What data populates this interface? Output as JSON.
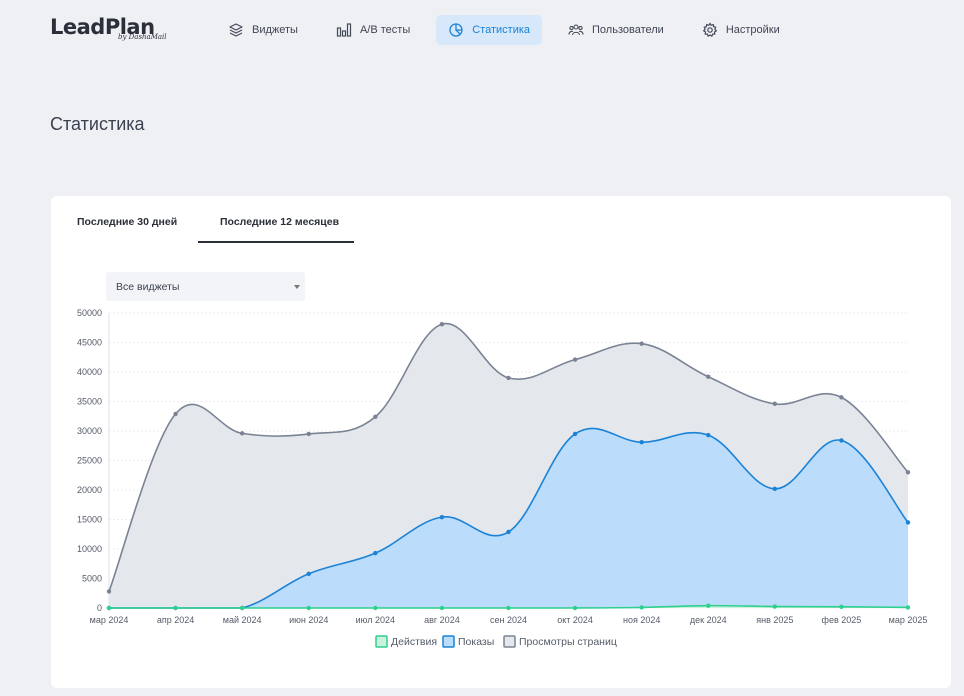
{
  "logo": {
    "main": "LeadPlan",
    "sub": "by DashaMail"
  },
  "nav": [
    {
      "label": "Виджеты",
      "icon": "layers-icon",
      "active": false
    },
    {
      "label": "A/B тесты",
      "icon": "bar-chart-icon",
      "active": false
    },
    {
      "label": "Статистика",
      "icon": "pie-chart-icon",
      "active": true
    },
    {
      "label": "Пользователи",
      "icon": "users-icon",
      "active": false
    },
    {
      "label": "Настройки",
      "icon": "gear-icon",
      "active": false
    }
  ],
  "page_title": "Статистика",
  "tabs": [
    {
      "label": "Последние 30 дней",
      "active": false
    },
    {
      "label": "Последние 12 месяцев",
      "active": true
    }
  ],
  "widget_select": {
    "value": "Все виджеты"
  },
  "colors": {
    "accent": "#1b83d6",
    "nav_active_bg": "#d6e8fa",
    "page_bg": "#eef0f4"
  },
  "chart_data": {
    "type": "area",
    "categories": [
      "мар 2024",
      "апр 2024",
      "май 2024",
      "июн 2024",
      "июл 2024",
      "авг 2024",
      "сен 2024",
      "окт 2024",
      "ноя 2024",
      "дек 2024",
      "янв 2025",
      "фев 2025",
      "мар 2025"
    ],
    "ylim": [
      0,
      50000
    ],
    "yticks": [
      0,
      5000,
      10000,
      15000,
      20000,
      25000,
      30000,
      35000,
      40000,
      45000,
      50000
    ],
    "grid": true,
    "legend_position": "bottom",
    "series": [
      {
        "name": "Действия",
        "color": "#2fcf8e",
        "fill": "#c9f2df",
        "values": [
          0,
          0,
          0,
          0,
          0,
          0,
          0,
          0,
          100,
          400,
          250,
          200,
          100
        ]
      },
      {
        "name": "Показы",
        "color": "#1b83d6",
        "fill": "#bcdcfb",
        "values": [
          0,
          0,
          0,
          5800,
          9300,
          15400,
          12900,
          29500,
          28100,
          29300,
          20200,
          28400,
          14500
        ]
      },
      {
        "name": "Просмотры страниц",
        "color": "#7a8394",
        "fill": "#e4e7ec",
        "values": [
          2800,
          32900,
          29600,
          29500,
          32400,
          48100,
          39000,
          42100,
          44800,
          39200,
          34600,
          35700,
          23000
        ]
      }
    ]
  }
}
